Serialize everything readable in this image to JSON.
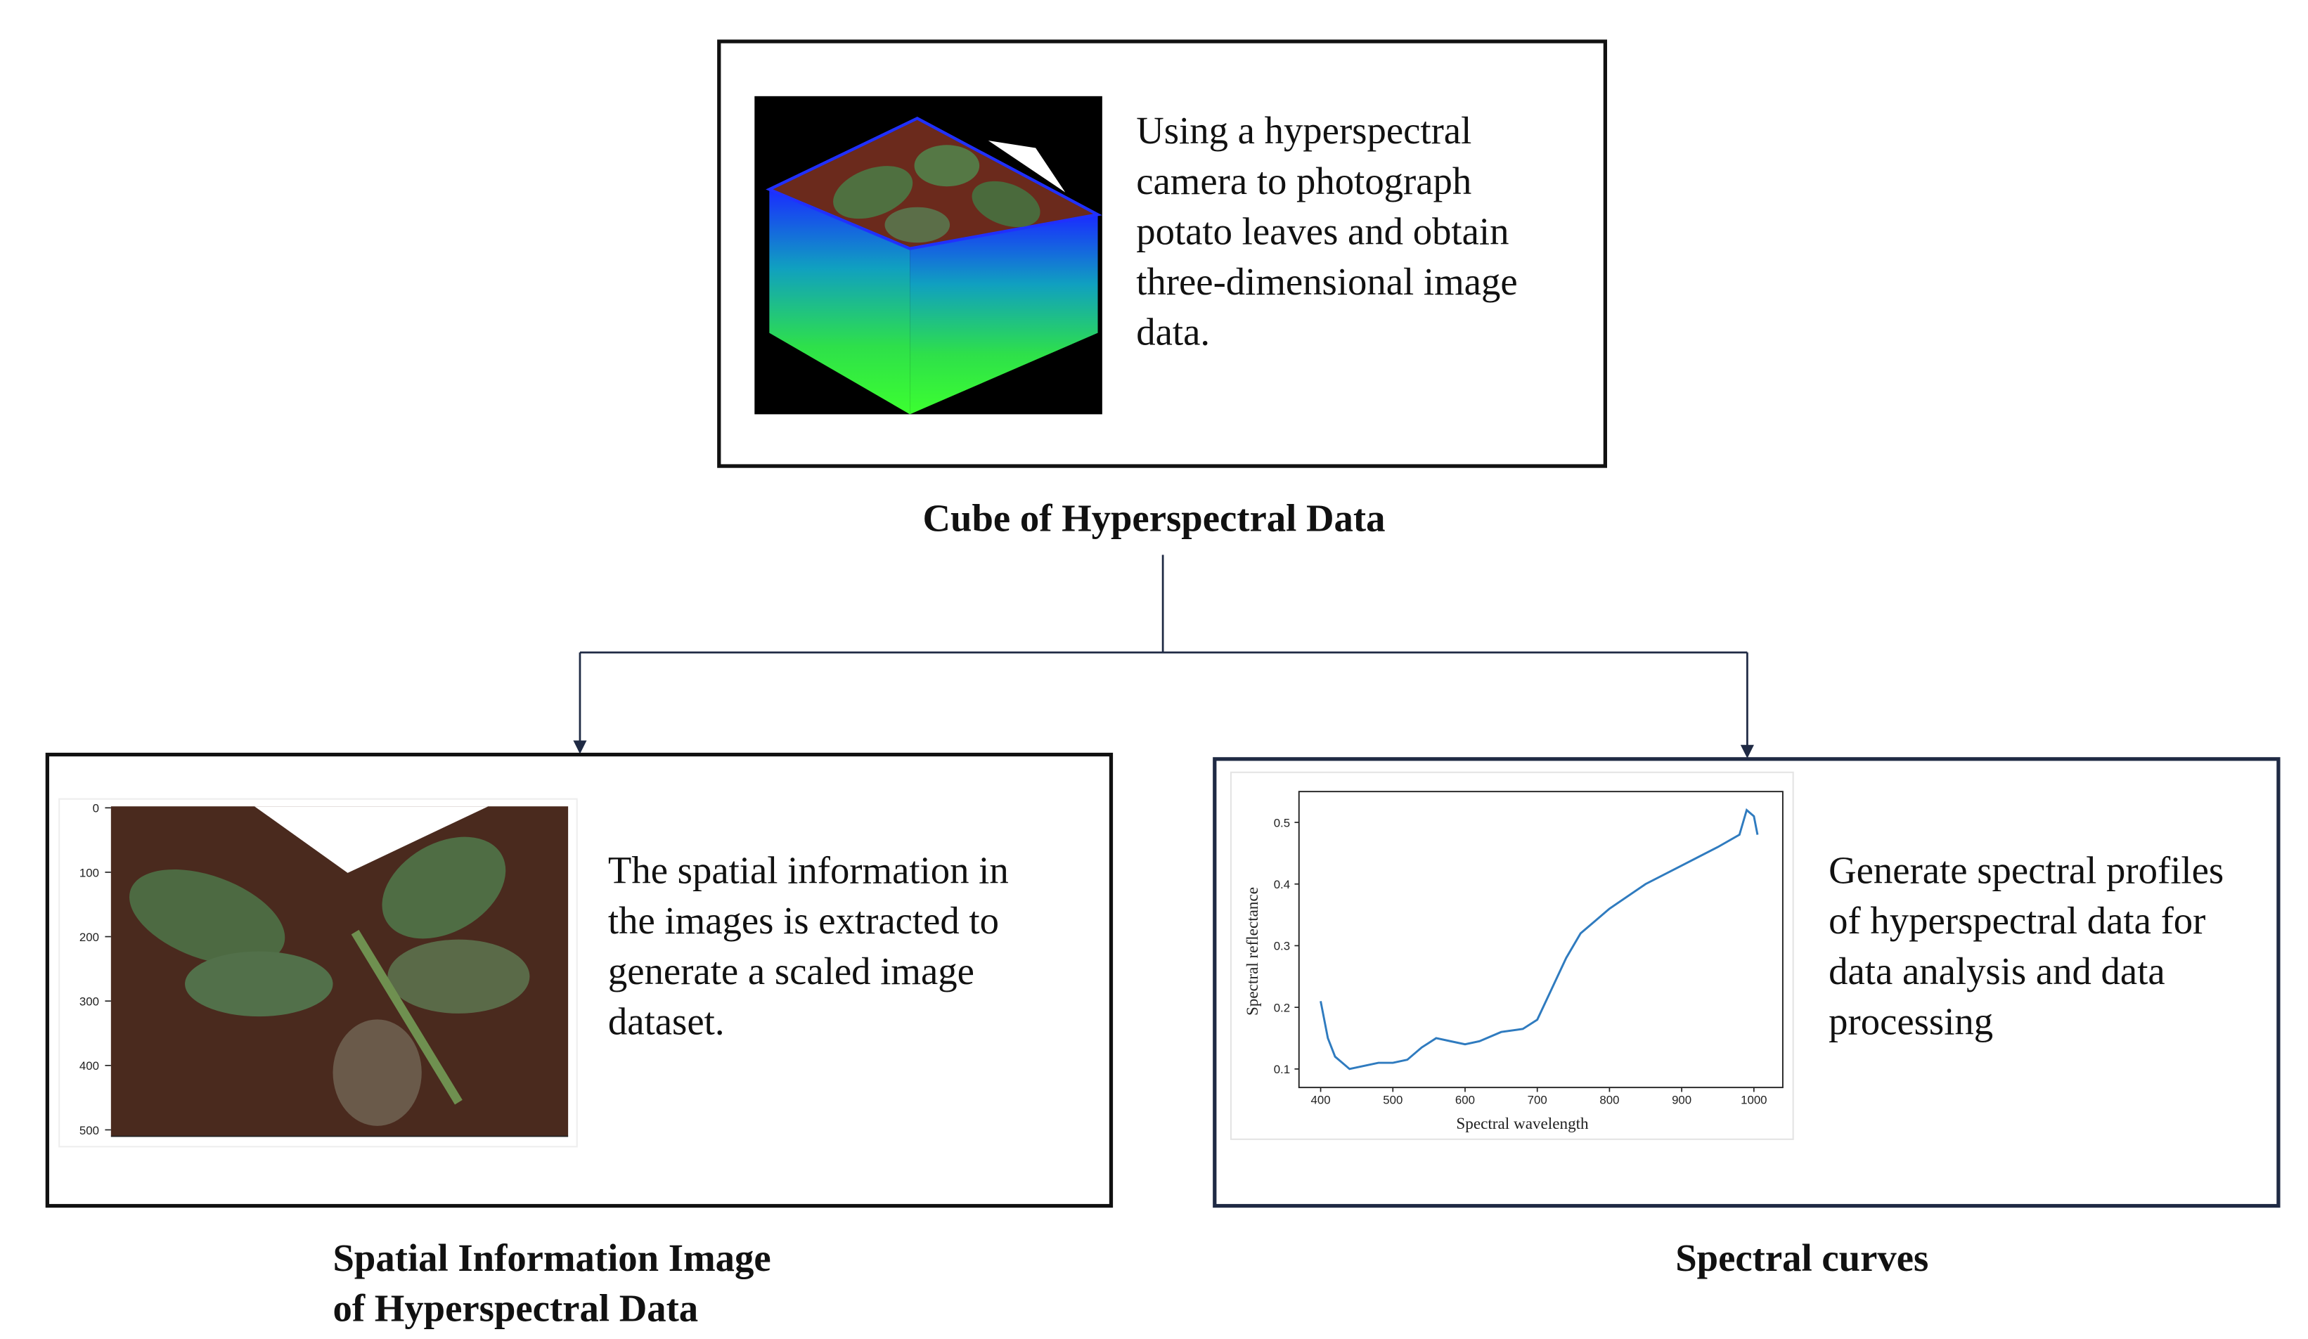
{
  "top": {
    "lines": [
      "Using a hyperspectral",
      "camera to photograph",
      "potato leaves and obtain",
      "three-dimensional image",
      "data."
    ],
    "caption": "Cube of Hyperspectral Data"
  },
  "left": {
    "lines": [
      "The spatial information in",
      "the images is extracted to",
      "generate a scaled image",
      "dataset."
    ],
    "caption_lines": [
      "Spatial Information Image",
      "of Hyperspectral Data"
    ],
    "image_axis": {
      "ylim": [
        0,
        510
      ],
      "yticks": [
        0,
        100,
        200,
        300,
        400,
        500
      ]
    }
  },
  "right": {
    "lines": [
      "Generate spectral profiles",
      "of hyperspectral data for",
      "data analysis and data",
      "processing"
    ],
    "caption": "Spectral curves",
    "plot": {
      "type": "line",
      "xlabel": "Spectral wavelength",
      "ylabel": "Spectral reflectance",
      "xlim": [
        370,
        1040
      ],
      "ylim": [
        0.07,
        0.55
      ],
      "xticks": [
        400,
        500,
        600,
        700,
        800,
        900,
        1000
      ],
      "yticks": [
        0.1,
        0.2,
        0.3,
        0.4,
        0.5
      ],
      "color": "#2f7bbf",
      "x": [
        400,
        410,
        420,
        440,
        460,
        480,
        500,
        520,
        540,
        560,
        580,
        600,
        620,
        650,
        680,
        700,
        720,
        740,
        760,
        780,
        800,
        850,
        900,
        950,
        980,
        990,
        1000,
        1005
      ],
      "y": [
        0.21,
        0.15,
        0.12,
        0.1,
        0.105,
        0.11,
        0.11,
        0.115,
        0.135,
        0.15,
        0.145,
        0.14,
        0.145,
        0.16,
        0.165,
        0.18,
        0.23,
        0.28,
        0.32,
        0.34,
        0.36,
        0.4,
        0.43,
        0.46,
        0.48,
        0.52,
        0.51,
        0.48
      ]
    }
  }
}
